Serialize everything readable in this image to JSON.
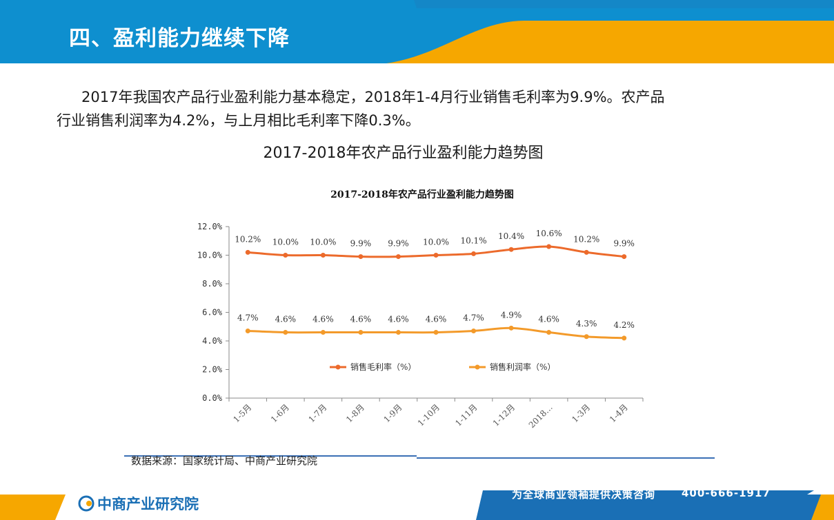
{
  "header": {
    "title": "四、盈利能力继续下降"
  },
  "intro": {
    "line1": "2017年我国农产品行业盈利能力基本稳定，2018年1-4月行业销售毛利率为9.9%。农产品",
    "line2": "行业销售利润率为4.2%，与上月相比毛利率下降0.3%。"
  },
  "subtitle": "2017-2018年农产品行业盈利能力趋势图",
  "chart_data": {
    "type": "line",
    "title": "2017-2018年农产品行业盈利能力趋势图",
    "categories": [
      "1-5月",
      "1-6月",
      "1-7月",
      "1-8月",
      "1-9月",
      "1-10月",
      "1-11月",
      "1-12月",
      "2018…",
      "1-3月",
      "1-4月"
    ],
    "series": [
      {
        "name": "销售毛利率（%）",
        "values": [
          10.2,
          10.0,
          10.0,
          9.9,
          9.9,
          10.0,
          10.1,
          10.4,
          10.6,
          10.2,
          9.9
        ],
        "labels": [
          "10.2%",
          "10.0%",
          "10.0%",
          "9.9%",
          "9.9%",
          "10.0%",
          "10.1%",
          "10.4%",
          "10.6%",
          "10.2%",
          "9.9%"
        ],
        "color": "#ec6a2b"
      },
      {
        "name": "销售利润率（%）",
        "values": [
          4.7,
          4.6,
          4.6,
          4.6,
          4.6,
          4.6,
          4.7,
          4.9,
          4.6,
          4.3,
          4.2
        ],
        "labels": [
          "4.7%",
          "4.6%",
          "4.6%",
          "4.6%",
          "4.6%",
          "4.6%",
          "4.7%",
          "4.9%",
          "4.6%",
          "4.3%",
          "4.2%"
        ],
        "color": "#f39a2a"
      }
    ],
    "y_ticks": [
      "0.0%",
      "2.0%",
      "4.0%",
      "6.0%",
      "8.0%",
      "10.0%",
      "12.0%"
    ],
    "ylim": [
      0,
      12
    ],
    "grid": false,
    "legend_placement": "center-inside"
  },
  "source": "数据来源：国家统计局、中商产业研究院",
  "footer": {
    "logo_text": "中商产业研究院",
    "slogan": "为全球商业领袖提供决策咨询",
    "phone": "400-666-1917"
  },
  "colors": {
    "blue": "#0e8fcf",
    "orange": "#f6a700",
    "dark_orange": "#ec6a2b",
    "footer_blue": "#1a6fb5"
  }
}
